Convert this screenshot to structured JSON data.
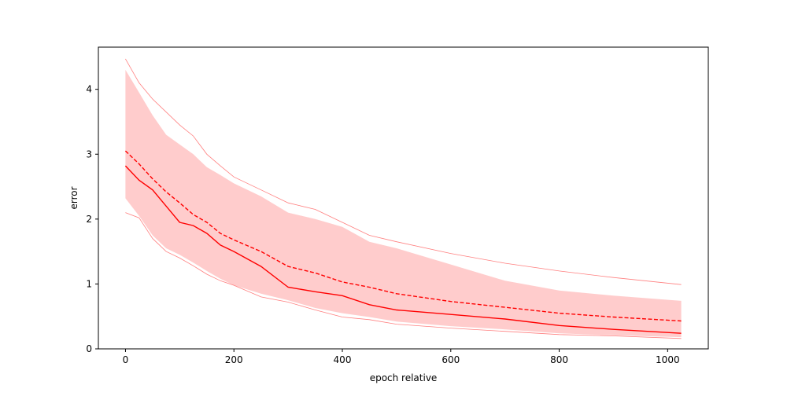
{
  "chart_data": {
    "type": "line",
    "title": "",
    "xlabel": "epoch relative",
    "ylabel": "error",
    "xlim": [
      -50,
      1075
    ],
    "ylim": [
      0,
      4.65
    ],
    "xticks": [
      0,
      200,
      400,
      600,
      800,
      1000
    ],
    "yticks": [
      0,
      1,
      2,
      3,
      4
    ],
    "grid": false,
    "legend": "none",
    "x": [
      0,
      25,
      50,
      75,
      100,
      125,
      150,
      175,
      200,
      250,
      300,
      350,
      400,
      450,
      500,
      600,
      700,
      800,
      900,
      1025
    ],
    "series": [
      {
        "role": "median",
        "style": "solid",
        "color": "#ff0000",
        "values": [
          2.82,
          2.6,
          2.45,
          2.2,
          1.95,
          1.9,
          1.78,
          1.6,
          1.5,
          1.27,
          0.95,
          0.88,
          0.82,
          0.68,
          0.6,
          0.53,
          0.46,
          0.36,
          0.3,
          0.24
        ]
      },
      {
        "role": "mean",
        "style": "dashed",
        "color": "#ff0000",
        "values": [
          3.05,
          2.85,
          2.62,
          2.42,
          2.25,
          2.07,
          1.95,
          1.78,
          1.68,
          1.5,
          1.27,
          1.17,
          1.03,
          0.95,
          0.85,
          0.73,
          0.64,
          0.55,
          0.49,
          0.43
        ]
      },
      {
        "role": "upper-envelope",
        "style": "thin",
        "color": "#ff7f7f",
        "values": [
          4.47,
          4.1,
          3.85,
          3.65,
          3.45,
          3.28,
          3.0,
          2.82,
          2.65,
          2.45,
          2.25,
          2.15,
          1.95,
          1.75,
          1.65,
          1.47,
          1.32,
          1.2,
          1.1,
          0.99
        ]
      },
      {
        "role": "lower-envelope",
        "style": "thin",
        "color": "#ff7f7f",
        "values": [
          2.1,
          2.02,
          1.7,
          1.5,
          1.4,
          1.28,
          1.15,
          1.05,
          0.98,
          0.8,
          0.72,
          0.6,
          0.49,
          0.45,
          0.38,
          0.32,
          0.27,
          0.22,
          0.2,
          0.16
        ]
      },
      {
        "role": "band-upper",
        "style": "fill",
        "color": "#ffcccc",
        "values": [
          4.3,
          3.95,
          3.6,
          3.3,
          3.15,
          3.0,
          2.8,
          2.68,
          2.55,
          2.35,
          2.1,
          2.0,
          1.88,
          1.65,
          1.55,
          1.3,
          1.05,
          0.9,
          0.82,
          0.74
        ]
      },
      {
        "role": "band-lower",
        "style": "fill",
        "color": "#ffcccc",
        "values": [
          2.32,
          2.05,
          1.75,
          1.55,
          1.45,
          1.33,
          1.2,
          1.08,
          0.98,
          0.85,
          0.75,
          0.63,
          0.55,
          0.49,
          0.42,
          0.35,
          0.3,
          0.24,
          0.21,
          0.18
        ]
      }
    ]
  }
}
